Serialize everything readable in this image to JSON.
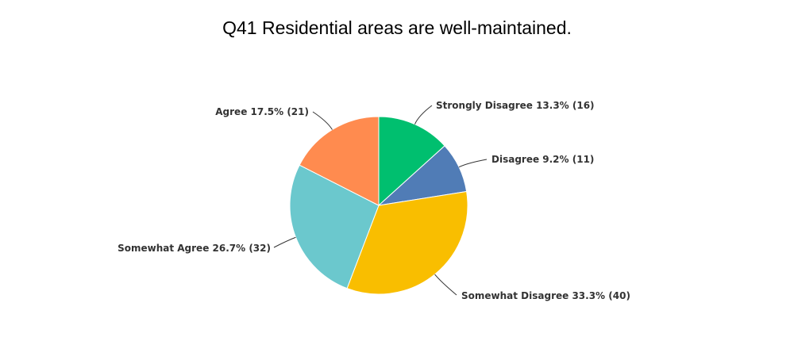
{
  "chart_data": {
    "type": "pie",
    "title": "Q41 Residential areas are well-maintained.",
    "slices": [
      {
        "label": "Strongly Disagree",
        "percent": 13.3,
        "count": 16,
        "text": "Strongly Disagree 13.3% (16)",
        "color": "#00bf6f"
      },
      {
        "label": "Disagree",
        "percent": 9.2,
        "count": 11,
        "text": "Disagree 9.2% (11)",
        "color": "#507cb6"
      },
      {
        "label": "Somewhat Disagree",
        "percent": 33.3,
        "count": 40,
        "text": "Somewhat Disagree 33.3% (40)",
        "color": "#f9be00"
      },
      {
        "label": "Somewhat Agree",
        "percent": 26.7,
        "count": 32,
        "text": "Somewhat Agree 26.7% (32)",
        "color": "#6bc8cd"
      },
      {
        "label": "Agree",
        "percent": 17.5,
        "count": 21,
        "text": "Agree 17.5% (21)",
        "color": "#ff8b4f"
      }
    ]
  }
}
